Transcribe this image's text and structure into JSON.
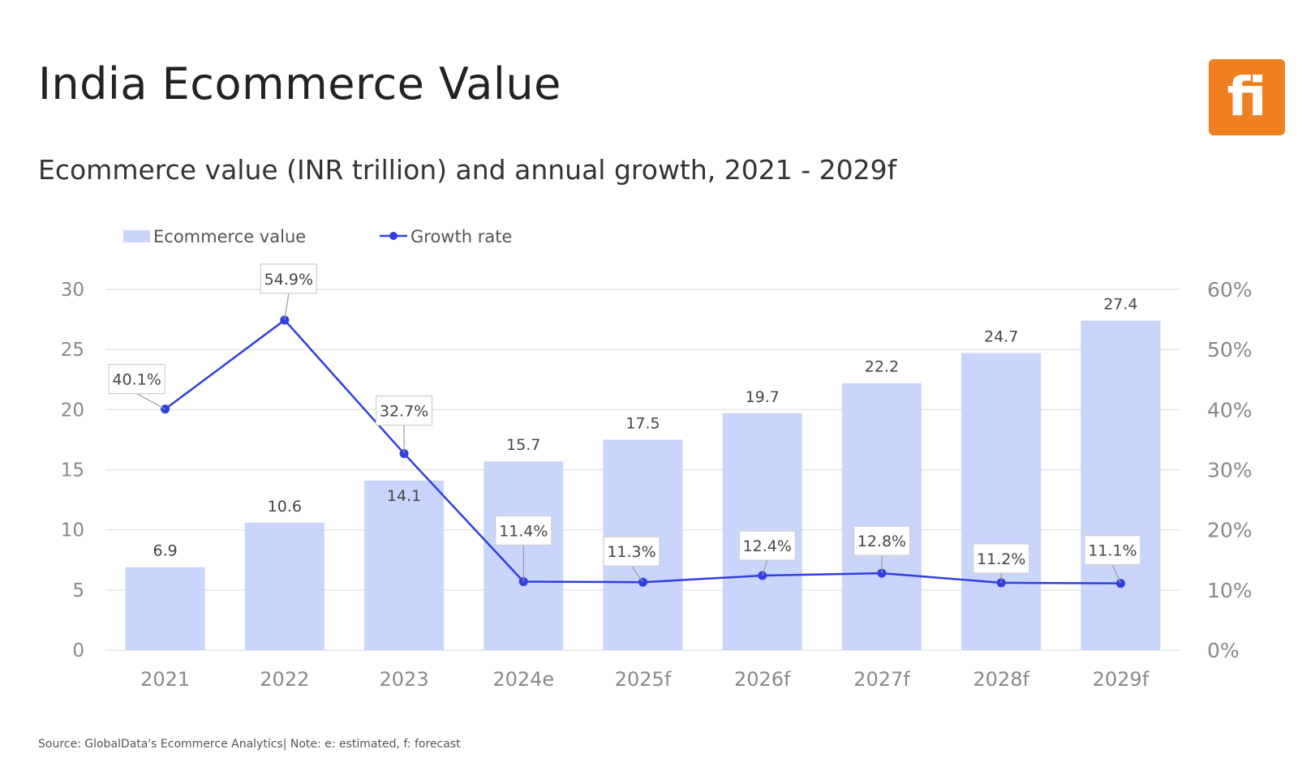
{
  "title": "India Ecommerce Value",
  "subtitle": "Ecommerce value (INR trillion) and annual growth, 2021 - 2029f",
  "logo_text": "fi",
  "source": "Source: GlobalData's Ecommerce Analytics| Note: e: estimated, f: forecast",
  "colors": {
    "bar": "#c9d5fb",
    "line": "#2f3fe0",
    "logo": "#f07f1f",
    "grid": "#e6e6e6",
    "axis_text": "#888888"
  },
  "chart_data": {
    "type": "bar",
    "categories": [
      "2021",
      "2022",
      "2023",
      "2024e",
      "2025f",
      "2026f",
      "2027f",
      "2028f",
      "2029f"
    ],
    "series": [
      {
        "name": "Ecommerce value",
        "type": "bar",
        "axis": "left",
        "values": [
          6.9,
          10.6,
          14.1,
          15.7,
          17.5,
          19.7,
          22.2,
          24.7,
          27.4
        ],
        "labels": [
          "6.9",
          "10.6",
          "14.1",
          "15.7",
          "17.5",
          "19.7",
          "22.2",
          "24.7",
          "27.4"
        ]
      },
      {
        "name": "Growth rate",
        "type": "line",
        "axis": "right",
        "values": [
          40.1,
          54.9,
          32.7,
          11.4,
          11.3,
          12.4,
          12.8,
          11.2,
          11.1
        ],
        "labels": [
          "40.1%",
          "54.9%",
          "32.7%",
          "11.4%",
          "11.3%",
          "12.4%",
          "12.8%",
          "11.2%",
          "11.1%"
        ]
      }
    ],
    "ylim": [
      0,
      30
    ],
    "yticks": [
      "0",
      "5",
      "10",
      "15",
      "20",
      "25",
      "30"
    ],
    "y2lim": [
      0,
      60
    ],
    "y2ticks": [
      "0%",
      "10%",
      "20%",
      "30%",
      "40%",
      "50%",
      "60%"
    ],
    "grid": true,
    "legend": "top-left"
  }
}
